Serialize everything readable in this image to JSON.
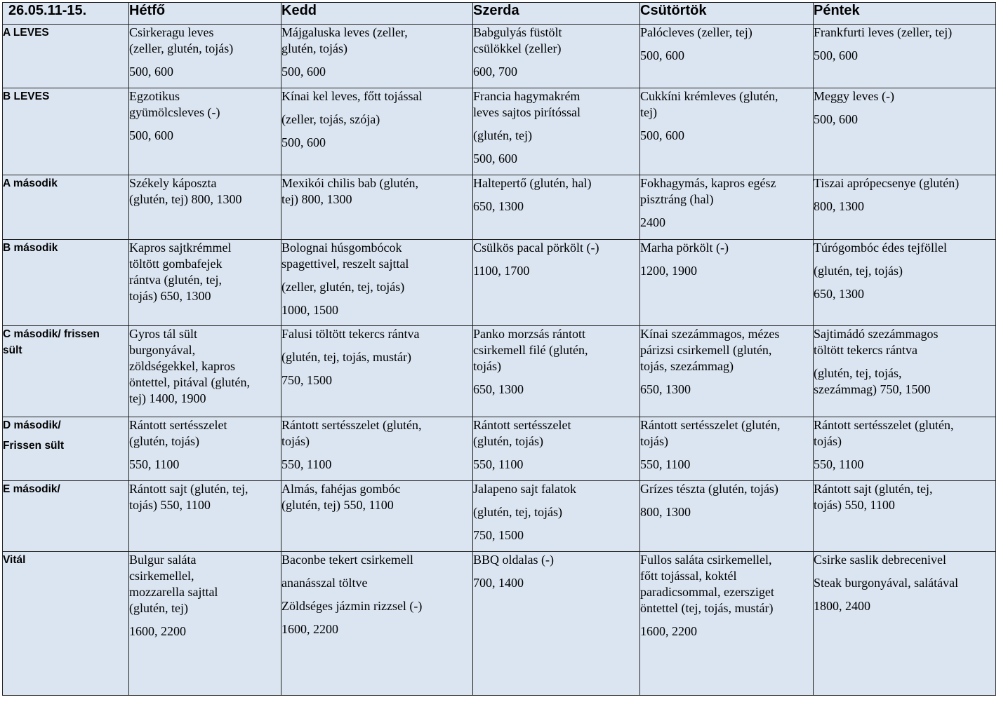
{
  "header": {
    "date": "26.05.11-15.",
    "days": [
      "Hétfő",
      "Kedd",
      "Szerda",
      "Csütörtök",
      "Péntek"
    ]
  },
  "rows": [
    {
      "label": [
        {
          "text": "A LEVES",
          "gap": false
        }
      ],
      "cells": [
        [
          {
            "t": "Csirkeragu leves",
            "g": false
          },
          {
            "t": "(zeller, glutén, tojás)",
            "g": false
          },
          {
            "t": "500, 600",
            "g": true
          }
        ],
        [
          {
            "t": "Májgaluska leves (zeller,",
            "g": false
          },
          {
            "t": "glutén, tojás)",
            "g": false
          },
          {
            "t": "500, 600",
            "g": true
          }
        ],
        [
          {
            "t": "Babgulyás füstölt",
            "g": false
          },
          {
            "t": "csülökkel (zeller)",
            "g": false
          },
          {
            "t": "600, 700",
            "g": true
          }
        ],
        [
          {
            "t": "Palócleves (zeller, tej)",
            "g": false
          },
          {
            "t": "500, 600",
            "g": true
          }
        ],
        [
          {
            "t": "Frankfurti leves (zeller, tej)",
            "g": false
          },
          {
            "t": "500, 600",
            "g": true
          }
        ]
      ]
    },
    {
      "label": [
        {
          "text": "B LEVES",
          "gap": false
        }
      ],
      "cells": [
        [
          {
            "t": "Egzotikus",
            "g": false
          },
          {
            "t": "gyümölcsleves (-)",
            "g": false
          },
          {
            "t": "500, 600",
            "g": true
          }
        ],
        [
          {
            "t": "Kínai kel leves, főtt tojással",
            "g": false
          },
          {
            "t": "(zeller, tojás, szója)",
            "g": true
          },
          {
            "t": "500, 600",
            "g": true
          }
        ],
        [
          {
            "t": "Francia hagymakrém",
            "g": false
          },
          {
            "t": "leves sajtos pirítóssal",
            "g": false
          },
          {
            "t": "(glutén, tej)",
            "g": true
          },
          {
            "t": "500, 600",
            "g": true
          }
        ],
        [
          {
            "t": "Cukkíni krémleves (glutén,",
            "g": false
          },
          {
            "t": "tej)",
            "g": false
          },
          {
            "t": "500, 600",
            "g": true
          }
        ],
        [
          {
            "t": "Meggy leves (-)",
            "g": false
          },
          {
            "t": "500, 600",
            "g": true
          }
        ]
      ]
    },
    {
      "label": [
        {
          "text": "A második",
          "gap": false
        }
      ],
      "cells": [
        [
          {
            "t": "Székely káposzta",
            "g": false
          },
          {
            "t": "(glutén, tej) 800, 1300",
            "g": false
          }
        ],
        [
          {
            "t": "Mexikói chilis bab (glutén,",
            "g": false
          },
          {
            "t": "tej) 800, 1300",
            "g": false
          }
        ],
        [
          {
            "t": "Haltepertő (glutén, hal)",
            "g": false
          },
          {
            "t": "650, 1300",
            "g": true
          }
        ],
        [
          {
            "t": "Fokhagymás, kapros egész",
            "g": false
          },
          {
            "t": "pisztráng (hal)",
            "g": false
          },
          {
            "t": "2400",
            "g": true
          }
        ],
        [
          {
            "t": "Tiszai aprópecsenye (glutén)",
            "g": false
          },
          {
            "t": "800, 1300",
            "g": true
          }
        ]
      ]
    },
    {
      "label": [
        {
          "text": "B második",
          "gap": false
        }
      ],
      "cells": [
        [
          {
            "t": "Kapros sajtkrémmel",
            "g": false
          },
          {
            "t": "töltött gombafejek",
            "g": false
          },
          {
            "t": "rántva (glutén, tej,",
            "g": false
          },
          {
            "t": "tojás) 650, 1300",
            "g": false
          }
        ],
        [
          {
            "t": "Bolognai húsgombócok",
            "g": false
          },
          {
            "t": "spagettivel, reszelt sajttal",
            "g": false
          },
          {
            "t": "(zeller, glutén, tej, tojás)",
            "g": true
          },
          {
            "t": "1000, 1500",
            "g": true
          }
        ],
        [
          {
            "t": "Csülkös pacal pörkölt (-)",
            "g": false
          },
          {
            "t": "1100, 1700",
            "g": true
          }
        ],
        [
          {
            "t": "Marha pörkölt (-)",
            "g": false
          },
          {
            "t": "1200, 1900",
            "g": true
          }
        ],
        [
          {
            "t": "Túrógombóc édes tejföllel",
            "g": false
          },
          {
            "t": "(glutén, tej, tojás)",
            "g": true
          },
          {
            "t": "650, 1300",
            "g": true
          }
        ]
      ]
    },
    {
      "label": [
        {
          "text": "C második/ frissen",
          "gap": false
        },
        {
          "text": "sült",
          "gap": false
        }
      ],
      "cells": [
        [
          {
            "t": "Gyros tál sült",
            "g": false
          },
          {
            "t": "burgonyával,",
            "g": false
          },
          {
            "t": "zöldségekkel, kapros",
            "g": false
          },
          {
            "t": "öntettel, pitával (glutén,",
            "g": false
          },
          {
            "t": "tej) 1400, 1900",
            "g": false
          }
        ],
        [
          {
            "t": "Falusi töltött tekercs rántva",
            "g": false
          },
          {
            "t": "(glutén, tej, tojás, mustár)",
            "g": true
          },
          {
            "t": "750, 1500",
            "g": true
          }
        ],
        [
          {
            "t": "Panko morzsás rántott",
            "g": false
          },
          {
            "t": "csirkemell filé (glutén,",
            "g": false
          },
          {
            "t": "tojás)",
            "g": false
          },
          {
            "t": "650, 1300",
            "g": true
          }
        ],
        [
          {
            "t": "Kínai szezámmagos, mézes",
            "g": false
          },
          {
            "t": "párizsi csirkemell (glutén,",
            "g": false
          },
          {
            "t": "tojás, szezámmag)",
            "g": false
          },
          {
            "t": "650, 1300",
            "g": true
          }
        ],
        [
          {
            "t": "Sajtimádó szezámmagos",
            "g": false
          },
          {
            "t": "töltött tekercs rántva",
            "g": false
          },
          {
            "t": "(glutén, tej, tojás,",
            "g": true
          },
          {
            "t": "szezámmag) 750, 1500",
            "g": false
          }
        ]
      ]
    },
    {
      "label": [
        {
          "text": "D második/",
          "gap": false
        },
        {
          "text": "Frissen sült",
          "gap": true
        }
      ],
      "cells": [
        [
          {
            "t": "Rántott sertésszelet",
            "g": false
          },
          {
            "t": "(glutén, tojás)",
            "g": false
          },
          {
            "t": "550, 1100",
            "g": true
          }
        ],
        [
          {
            "t": "Rántott sertésszelet (glutén,",
            "g": false
          },
          {
            "t": "tojás)",
            "g": false
          },
          {
            "t": "550, 1100",
            "g": true
          }
        ],
        [
          {
            "t": "Rántott sertésszelet",
            "g": false
          },
          {
            "t": "(glutén, tojás)",
            "g": false
          },
          {
            "t": "550, 1100",
            "g": true
          }
        ],
        [
          {
            "t": "Rántott sertésszelet (glutén,",
            "g": false
          },
          {
            "t": "tojás)",
            "g": false
          },
          {
            "t": "550, 1100",
            "g": true
          }
        ],
        [
          {
            "t": "Rántott sertésszelet (glutén,",
            "g": false
          },
          {
            "t": "tojás)",
            "g": false
          },
          {
            "t": "550, 1100",
            "g": true
          }
        ]
      ]
    },
    {
      "label": [
        {
          "text": "E második/",
          "gap": false
        }
      ],
      "cells": [
        [
          {
            "t": "Rántott sajt (glutén, tej,",
            "g": false
          },
          {
            "t": "tojás) 550, 1100",
            "g": false
          }
        ],
        [
          {
            "t": "Almás, fahéjas gombóc",
            "g": false
          },
          {
            "t": "(glutén, tej) 550, 1100",
            "g": false
          }
        ],
        [
          {
            "t": "Jalapeno sajt falatok",
            "g": false
          },
          {
            "t": "(glutén, tej, tojás)",
            "g": true
          },
          {
            "t": "750, 1500",
            "g": true
          }
        ],
        [
          {
            "t": "Grízes tészta (glutén, tojás)",
            "g": false
          },
          {
            "t": "800, 1300",
            "g": true
          }
        ],
        [
          {
            "t": "Rántott sajt (glutén, tej,",
            "g": false
          },
          {
            "t": "tojás) 550, 1100",
            "g": false
          }
        ]
      ]
    },
    {
      "label": [
        {
          "text": "Vitál",
          "gap": false
        }
      ],
      "cells": [
        [
          {
            "t": "Bulgur saláta",
            "g": false
          },
          {
            "t": "csirkemellel,",
            "g": false
          },
          {
            "t": "mozzarella sajttal",
            "g": false
          },
          {
            "t": "(glutén, tej)",
            "g": false
          },
          {
            "t": "1600, 2200",
            "g": true
          }
        ],
        [
          {
            "t": "Baconbe tekert csirkemell",
            "g": false
          },
          {
            "t": "ananásszal töltve",
            "g": true
          },
          {
            "t": "Zöldséges jázmin rizzsel (-)",
            "g": true
          },
          {
            "t": "1600, 2200",
            "g": true
          }
        ],
        [
          {
            "t": "BBQ oldalas (-)",
            "g": false
          },
          {
            "t": "700, 1400",
            "g": true
          }
        ],
        [
          {
            "t": "Fullos saláta csirkemellel,",
            "g": false
          },
          {
            "t": "főtt tojással, koktél",
            "g": false
          },
          {
            "t": "paradicsommal, ezersziget",
            "g": false
          },
          {
            "t": "öntettel (tej, tojás, mustár)",
            "g": false
          },
          {
            "t": "1600, 2200",
            "g": true
          }
        ],
        [
          {
            "t": "Csirke saslik debrecenivel",
            "g": false
          },
          {
            "t": "Steak burgonyával, salátával",
            "g": true
          },
          {
            "t": "1800, 2400",
            "g": true
          }
        ]
      ]
    }
  ]
}
